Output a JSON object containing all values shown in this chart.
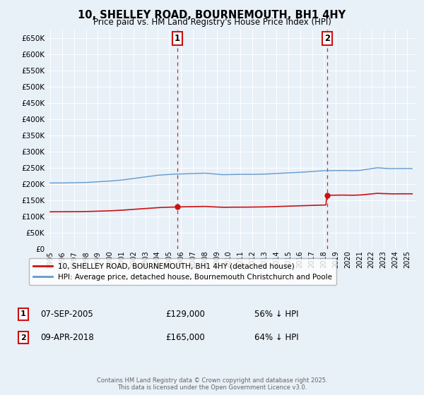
{
  "title": "10, SHELLEY ROAD, BOURNEMOUTH, BH1 4HY",
  "subtitle": "Price paid vs. HM Land Registry's House Price Index (HPI)",
  "background_color": "#e8f0f8",
  "plot_bg_color": "#e8f0f8",
  "ylim": [
    0,
    675000
  ],
  "yticks": [
    0,
    50000,
    100000,
    150000,
    200000,
    250000,
    300000,
    350000,
    400000,
    450000,
    500000,
    550000,
    600000,
    650000
  ],
  "ytick_labels": [
    "£0",
    "£50K",
    "£100K",
    "£150K",
    "£200K",
    "£250K",
    "£300K",
    "£350K",
    "£400K",
    "£450K",
    "£500K",
    "£550K",
    "£600K",
    "£650K"
  ],
  "xlim_start": 1994.7,
  "xlim_end": 2025.7,
  "sale1_x": 2005.685,
  "sale1_y": 129000,
  "sale1_label": "1",
  "sale1_date": "07-SEP-2005",
  "sale1_price": "£129,000",
  "sale1_pct": "56% ↓ HPI",
  "sale2_x": 2018.274,
  "sale2_y": 165000,
  "sale2_label": "2",
  "sale2_date": "09-APR-2018",
  "sale2_price": "£165,000",
  "sale2_pct": "64% ↓ HPI",
  "hpi_color": "#6699cc",
  "sale_color": "#cc1111",
  "legend1_label": "10, SHELLEY ROAD, BOURNEMOUTH, BH1 4HY (detached house)",
  "legend2_label": "HPI: Average price, detached house, Bournemouth Christchurch and Poole",
  "footer": "Contains HM Land Registry data © Crown copyright and database right 2025.\nThis data is licensed under the Open Government Licence v3.0."
}
